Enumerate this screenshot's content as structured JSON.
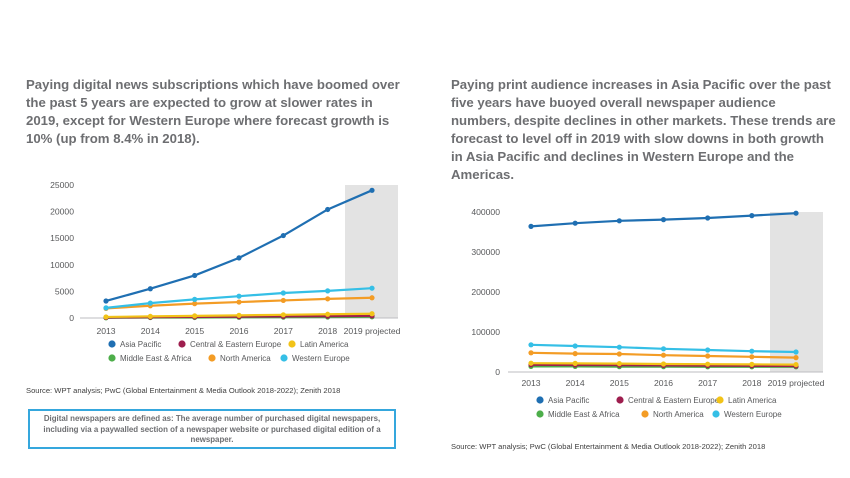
{
  "left_heading": "Paying digital news subscriptions which have boomed over the past 5 years are expected to grow at slower rates in 2019, except for Western Europe where forecast growth is 10% (up from 8.4% in 2018).",
  "right_heading": "Paying print audience increases in Asia Pacific over the past five years have buoyed overall newspaper audience numbers, despite declines in other markets. These trends are forecast to level off in 2019 with slow downs in both growth in Asia Pacific and declines in Western Europe and the Americas.",
  "left_source": "Source: WPT analysis; PwC (Global Entertainment & Media Outlook 2018-2022); Zenith 2018",
  "right_source": "Source: WPT analysis; PwC (Global Entertainment & Media Outlook 2018-2022); Zenith 2018",
  "definition_box": "Digital newspapers are defined as: The average number of purchased digital newspapers, including via a paywalled section of a newspaper website or purchased digital edition of a newspaper.",
  "chart_data": [
    {
      "type": "line",
      "categories": [
        "2013",
        "2014",
        "2015",
        "2016",
        "2017",
        "2018",
        "2019 projected"
      ],
      "ylim": [
        0,
        25000
      ],
      "yticks": [
        0,
        5000,
        10000,
        15000,
        20000,
        25000
      ],
      "ytick_labels": [
        "0",
        "5000",
        "10000",
        "15000",
        "20000",
        "25000"
      ],
      "projected_shading": "2019 projected",
      "grid": false,
      "legend_position": "bottom",
      "series": [
        {
          "name": "Asia Pacific",
          "color": "#1f6fb2",
          "values": [
            3200,
            5500,
            8000,
            11300,
            15500,
            20400,
            24000
          ]
        },
        {
          "name": "Central & Eastern Europe",
          "color": "#9e1e4e",
          "values": [
            100,
            150,
            200,
            250,
            300,
            350,
            400
          ]
        },
        {
          "name": "Latin America",
          "color": "#f2c318",
          "values": [
            200,
            300,
            400,
            500,
            600,
            700,
            800
          ]
        },
        {
          "name": "Middle East & Africa",
          "color": "#4dae4a",
          "values": [
            50,
            80,
            100,
            130,
            160,
            190,
            220
          ]
        },
        {
          "name": "North America",
          "color": "#f39c25",
          "values": [
            1800,
            2300,
            2700,
            3000,
            3300,
            3600,
            3800
          ]
        },
        {
          "name": "Western Europe",
          "color": "#35bfe6",
          "values": [
            1900,
            2800,
            3500,
            4100,
            4700,
            5100,
            5600
          ]
        }
      ]
    },
    {
      "type": "line",
      "categories": [
        "2013",
        "2014",
        "2015",
        "2016",
        "2017",
        "2018",
        "2019 projected"
      ],
      "ylim": [
        0,
        400000
      ],
      "yticks": [
        0,
        100000,
        200000,
        300000,
        400000
      ],
      "ytick_labels": [
        "0",
        "100000",
        "200000",
        "300000",
        "400000"
      ],
      "projected_shading": "2019 projected",
      "grid": false,
      "legend_position": "bottom",
      "series": [
        {
          "name": "Asia Pacific",
          "color": "#1f6fb2",
          "values": [
            364000,
            372000,
            378000,
            381000,
            385000,
            391000,
            397000
          ]
        },
        {
          "name": "Central & Eastern Europe",
          "color": "#9e1e4e",
          "values": [
            18000,
            17500,
            17000,
            16500,
            16000,
            15500,
            15000
          ]
        },
        {
          "name": "Latin America",
          "color": "#f2c318",
          "values": [
            22000,
            21500,
            21000,
            20000,
            19500,
            19000,
            18500
          ]
        },
        {
          "name": "Middle East & Africa",
          "color": "#4dae4a",
          "values": [
            14000,
            14000,
            13500,
            13500,
            13000,
            13000,
            13000
          ]
        },
        {
          "name": "North America",
          "color": "#f39c25",
          "values": [
            48000,
            46000,
            45000,
            42000,
            40000,
            38000,
            36000
          ]
        },
        {
          "name": "Western Europe",
          "color": "#35bfe6",
          "values": [
            68000,
            65000,
            62000,
            58000,
            55000,
            52000,
            50000
          ]
        }
      ]
    }
  ]
}
